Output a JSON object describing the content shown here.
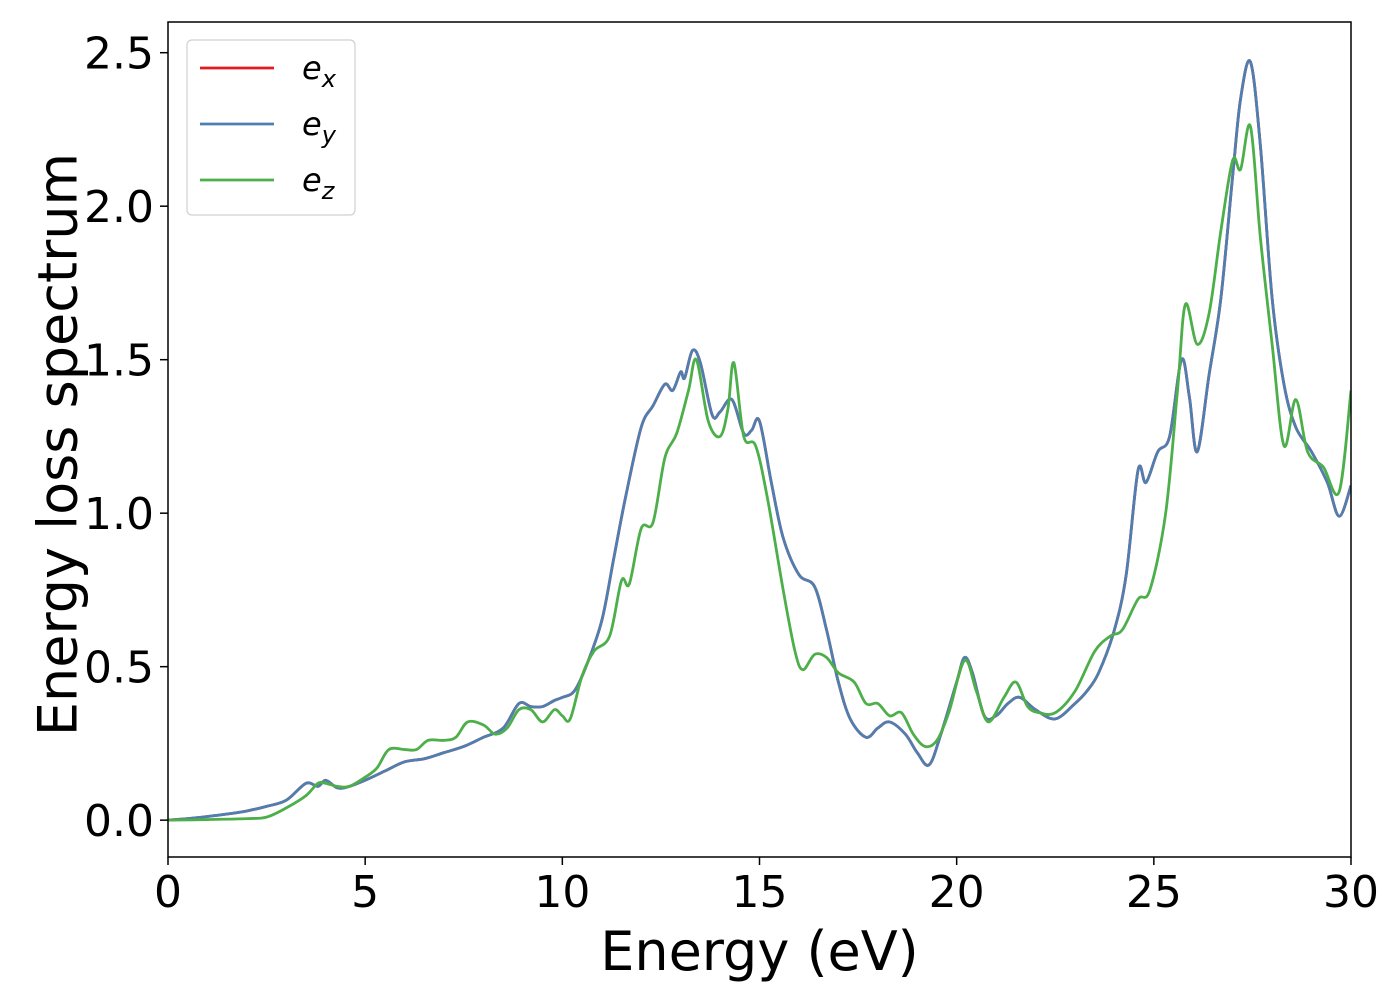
{
  "chart_data": {
    "type": "line",
    "title": "",
    "xlabel": "Energy (eV)",
    "ylabel": "Energy loss spectrum",
    "xlim": [
      0,
      30
    ],
    "ylim": [
      -0.12,
      2.6
    ],
    "xticks": [
      0,
      5,
      10,
      15,
      20,
      25,
      30
    ],
    "xtick_labels": [
      "0",
      "5",
      "10",
      "15",
      "20",
      "25",
      "30"
    ],
    "yticks": [
      0.0,
      0.5,
      1.0,
      1.5,
      2.0,
      2.5
    ],
    "ytick_labels": [
      "0.0",
      "0.5",
      "1.0",
      "1.5",
      "2.0",
      "2.5"
    ],
    "grid": false,
    "legend_position": "top-left",
    "series": [
      {
        "name": "e_x",
        "legend_base": "e",
        "legend_sub": "x",
        "color": "#e41a1c",
        "points": [
          [
            0,
            0
          ],
          [
            0.5,
            0.005
          ],
          [
            1,
            0.012
          ],
          [
            1.5,
            0.02
          ],
          [
            2,
            0.03
          ],
          [
            2.5,
            0.045
          ],
          [
            3,
            0.065
          ],
          [
            3.5,
            0.12
          ],
          [
            3.8,
            0.11
          ],
          [
            4,
            0.13
          ],
          [
            4.3,
            0.105
          ],
          [
            4.6,
            0.11
          ],
          [
            5,
            0.13
          ],
          [
            5.5,
            0.16
          ],
          [
            6,
            0.19
          ],
          [
            6.5,
            0.2
          ],
          [
            7,
            0.22
          ],
          [
            7.5,
            0.24
          ],
          [
            8,
            0.27
          ],
          [
            8.5,
            0.3
          ],
          [
            8.9,
            0.38
          ],
          [
            9.2,
            0.37
          ],
          [
            9.5,
            0.37
          ],
          [
            9.8,
            0.39
          ],
          [
            10,
            0.4
          ],
          [
            10.3,
            0.42
          ],
          [
            10.6,
            0.5
          ],
          [
            11,
            0.65
          ],
          [
            11.3,
            0.85
          ],
          [
            11.6,
            1.05
          ],
          [
            12,
            1.28
          ],
          [
            12.3,
            1.35
          ],
          [
            12.6,
            1.42
          ],
          [
            12.8,
            1.4
          ],
          [
            13,
            1.46
          ],
          [
            13.1,
            1.44
          ],
          [
            13.3,
            1.53
          ],
          [
            13.5,
            1.49
          ],
          [
            13.8,
            1.32
          ],
          [
            14,
            1.33
          ],
          [
            14.3,
            1.37
          ],
          [
            14.6,
            1.26
          ],
          [
            14.8,
            1.27
          ],
          [
            15,
            1.3
          ],
          [
            15.3,
            1.1
          ],
          [
            15.6,
            0.92
          ],
          [
            16,
            0.8
          ],
          [
            16.4,
            0.76
          ],
          [
            16.7,
            0.62
          ],
          [
            17,
            0.45
          ],
          [
            17.3,
            0.33
          ],
          [
            17.7,
            0.27
          ],
          [
            18,
            0.3
          ],
          [
            18.3,
            0.32
          ],
          [
            18.7,
            0.28
          ],
          [
            19,
            0.22
          ],
          [
            19.3,
            0.18
          ],
          [
            19.6,
            0.28
          ],
          [
            20,
            0.45
          ],
          [
            20.2,
            0.53
          ],
          [
            20.4,
            0.48
          ],
          [
            20.7,
            0.34
          ],
          [
            21,
            0.34
          ],
          [
            21.3,
            0.38
          ],
          [
            21.6,
            0.4
          ],
          [
            22,
            0.36
          ],
          [
            22.5,
            0.33
          ],
          [
            23,
            0.38
          ],
          [
            23.3,
            0.42
          ],
          [
            23.6,
            0.48
          ],
          [
            24,
            0.62
          ],
          [
            24.3,
            0.8
          ],
          [
            24.6,
            1.14
          ],
          [
            24.8,
            1.1
          ],
          [
            25.1,
            1.2
          ],
          [
            25.4,
            1.25
          ],
          [
            25.7,
            1.5
          ],
          [
            25.9,
            1.38
          ],
          [
            26.1,
            1.2
          ],
          [
            26.4,
            1.45
          ],
          [
            26.7,
            1.7
          ],
          [
            27,
            2.1
          ],
          [
            27.2,
            2.35
          ],
          [
            27.45,
            2.47
          ],
          [
            27.7,
            2.2
          ],
          [
            28,
            1.7
          ],
          [
            28.3,
            1.42
          ],
          [
            28.6,
            1.28
          ],
          [
            29,
            1.2
          ],
          [
            29.4,
            1.1
          ],
          [
            29.7,
            0.99
          ],
          [
            30,
            1.09
          ]
        ]
      },
      {
        "name": "e_y",
        "legend_base": "e",
        "legend_sub": "y",
        "color": "#4f7fb0",
        "points": [
          [
            0,
            0
          ],
          [
            0.5,
            0.005
          ],
          [
            1,
            0.012
          ],
          [
            1.5,
            0.02
          ],
          [
            2,
            0.03
          ],
          [
            2.5,
            0.045
          ],
          [
            3,
            0.065
          ],
          [
            3.5,
            0.12
          ],
          [
            3.8,
            0.11
          ],
          [
            4,
            0.13
          ],
          [
            4.3,
            0.105
          ],
          [
            4.6,
            0.11
          ],
          [
            5,
            0.13
          ],
          [
            5.5,
            0.16
          ],
          [
            6,
            0.19
          ],
          [
            6.5,
            0.2
          ],
          [
            7,
            0.22
          ],
          [
            7.5,
            0.24
          ],
          [
            8,
            0.27
          ],
          [
            8.5,
            0.3
          ],
          [
            8.9,
            0.38
          ],
          [
            9.2,
            0.37
          ],
          [
            9.5,
            0.37
          ],
          [
            9.8,
            0.39
          ],
          [
            10,
            0.4
          ],
          [
            10.3,
            0.42
          ],
          [
            10.6,
            0.5
          ],
          [
            11,
            0.65
          ],
          [
            11.3,
            0.85
          ],
          [
            11.6,
            1.05
          ],
          [
            12,
            1.28
          ],
          [
            12.3,
            1.35
          ],
          [
            12.6,
            1.42
          ],
          [
            12.8,
            1.4
          ],
          [
            13,
            1.46
          ],
          [
            13.1,
            1.44
          ],
          [
            13.3,
            1.53
          ],
          [
            13.5,
            1.49
          ],
          [
            13.8,
            1.32
          ],
          [
            14,
            1.33
          ],
          [
            14.3,
            1.37
          ],
          [
            14.6,
            1.26
          ],
          [
            14.8,
            1.27
          ],
          [
            15,
            1.3
          ],
          [
            15.3,
            1.1
          ],
          [
            15.6,
            0.92
          ],
          [
            16,
            0.8
          ],
          [
            16.4,
            0.76
          ],
          [
            16.7,
            0.62
          ],
          [
            17,
            0.45
          ],
          [
            17.3,
            0.33
          ],
          [
            17.7,
            0.27
          ],
          [
            18,
            0.3
          ],
          [
            18.3,
            0.32
          ],
          [
            18.7,
            0.28
          ],
          [
            19,
            0.22
          ],
          [
            19.3,
            0.18
          ],
          [
            19.6,
            0.28
          ],
          [
            20,
            0.45
          ],
          [
            20.2,
            0.53
          ],
          [
            20.4,
            0.48
          ],
          [
            20.7,
            0.34
          ],
          [
            21,
            0.34
          ],
          [
            21.3,
            0.38
          ],
          [
            21.6,
            0.4
          ],
          [
            22,
            0.36
          ],
          [
            22.5,
            0.33
          ],
          [
            23,
            0.38
          ],
          [
            23.3,
            0.42
          ],
          [
            23.6,
            0.48
          ],
          [
            24,
            0.62
          ],
          [
            24.3,
            0.8
          ],
          [
            24.6,
            1.14
          ],
          [
            24.8,
            1.1
          ],
          [
            25.1,
            1.2
          ],
          [
            25.4,
            1.25
          ],
          [
            25.7,
            1.5
          ],
          [
            25.9,
            1.38
          ],
          [
            26.1,
            1.2
          ],
          [
            26.4,
            1.45
          ],
          [
            26.7,
            1.7
          ],
          [
            27,
            2.1
          ],
          [
            27.2,
            2.35
          ],
          [
            27.45,
            2.47
          ],
          [
            27.7,
            2.2
          ],
          [
            28,
            1.7
          ],
          [
            28.3,
            1.42
          ],
          [
            28.6,
            1.28
          ],
          [
            29,
            1.2
          ],
          [
            29.4,
            1.1
          ],
          [
            29.7,
            0.99
          ],
          [
            30,
            1.09
          ]
        ]
      },
      {
        "name": "e_z",
        "legend_base": "e",
        "legend_sub": "z",
        "color": "#4daf4a",
        "points": [
          [
            0,
            0
          ],
          [
            1,
            0.002
          ],
          [
            2,
            0.005
          ],
          [
            2.5,
            0.01
          ],
          [
            3,
            0.04
          ],
          [
            3.5,
            0.08
          ],
          [
            3.8,
            0.12
          ],
          [
            4,
            0.12
          ],
          [
            4.3,
            0.11
          ],
          [
            4.6,
            0.11
          ],
          [
            5,
            0.14
          ],
          [
            5.3,
            0.17
          ],
          [
            5.6,
            0.23
          ],
          [
            6,
            0.23
          ],
          [
            6.3,
            0.23
          ],
          [
            6.6,
            0.26
          ],
          [
            7,
            0.26
          ],
          [
            7.3,
            0.27
          ],
          [
            7.6,
            0.32
          ],
          [
            8,
            0.31
          ],
          [
            8.3,
            0.28
          ],
          [
            8.6,
            0.3
          ],
          [
            8.9,
            0.36
          ],
          [
            9.2,
            0.36
          ],
          [
            9.5,
            0.32
          ],
          [
            9.8,
            0.36
          ],
          [
            10,
            0.34
          ],
          [
            10.2,
            0.33
          ],
          [
            10.5,
            0.47
          ],
          [
            10.8,
            0.55
          ],
          [
            11.2,
            0.6
          ],
          [
            11.5,
            0.78
          ],
          [
            11.7,
            0.77
          ],
          [
            12,
            0.95
          ],
          [
            12.3,
            0.97
          ],
          [
            12.6,
            1.18
          ],
          [
            12.9,
            1.26
          ],
          [
            13.2,
            1.4
          ],
          [
            13.4,
            1.5
          ],
          [
            13.7,
            1.3
          ],
          [
            14,
            1.25
          ],
          [
            14.2,
            1.34
          ],
          [
            14.35,
            1.49
          ],
          [
            14.6,
            1.25
          ],
          [
            14.9,
            1.22
          ],
          [
            15.2,
            1.05
          ],
          [
            15.6,
            0.75
          ],
          [
            15.9,
            0.55
          ],
          [
            16.1,
            0.49
          ],
          [
            16.4,
            0.54
          ],
          [
            16.7,
            0.53
          ],
          [
            17,
            0.48
          ],
          [
            17.4,
            0.45
          ],
          [
            17.7,
            0.38
          ],
          [
            18,
            0.38
          ],
          [
            18.3,
            0.34
          ],
          [
            18.6,
            0.35
          ],
          [
            18.9,
            0.28
          ],
          [
            19.2,
            0.24
          ],
          [
            19.5,
            0.26
          ],
          [
            19.8,
            0.35
          ],
          [
            20.2,
            0.52
          ],
          [
            20.5,
            0.42
          ],
          [
            20.8,
            0.32
          ],
          [
            21.2,
            0.4
          ],
          [
            21.5,
            0.45
          ],
          [
            21.8,
            0.37
          ],
          [
            22.1,
            0.35
          ],
          [
            22.5,
            0.35
          ],
          [
            23,
            0.42
          ],
          [
            23.5,
            0.55
          ],
          [
            23.9,
            0.6
          ],
          [
            24.2,
            0.62
          ],
          [
            24.6,
            0.72
          ],
          [
            24.9,
            0.75
          ],
          [
            25.3,
            1.0
          ],
          [
            25.6,
            1.4
          ],
          [
            25.8,
            1.68
          ],
          [
            26.1,
            1.55
          ],
          [
            26.4,
            1.65
          ],
          [
            26.7,
            1.92
          ],
          [
            27,
            2.15
          ],
          [
            27.2,
            2.12
          ],
          [
            27.45,
            2.26
          ],
          [
            27.7,
            1.9
          ],
          [
            28,
            1.55
          ],
          [
            28.3,
            1.22
          ],
          [
            28.6,
            1.37
          ],
          [
            28.9,
            1.2
          ],
          [
            29.3,
            1.15
          ],
          [
            29.7,
            1.07
          ],
          [
            30,
            1.4
          ]
        ]
      }
    ]
  }
}
